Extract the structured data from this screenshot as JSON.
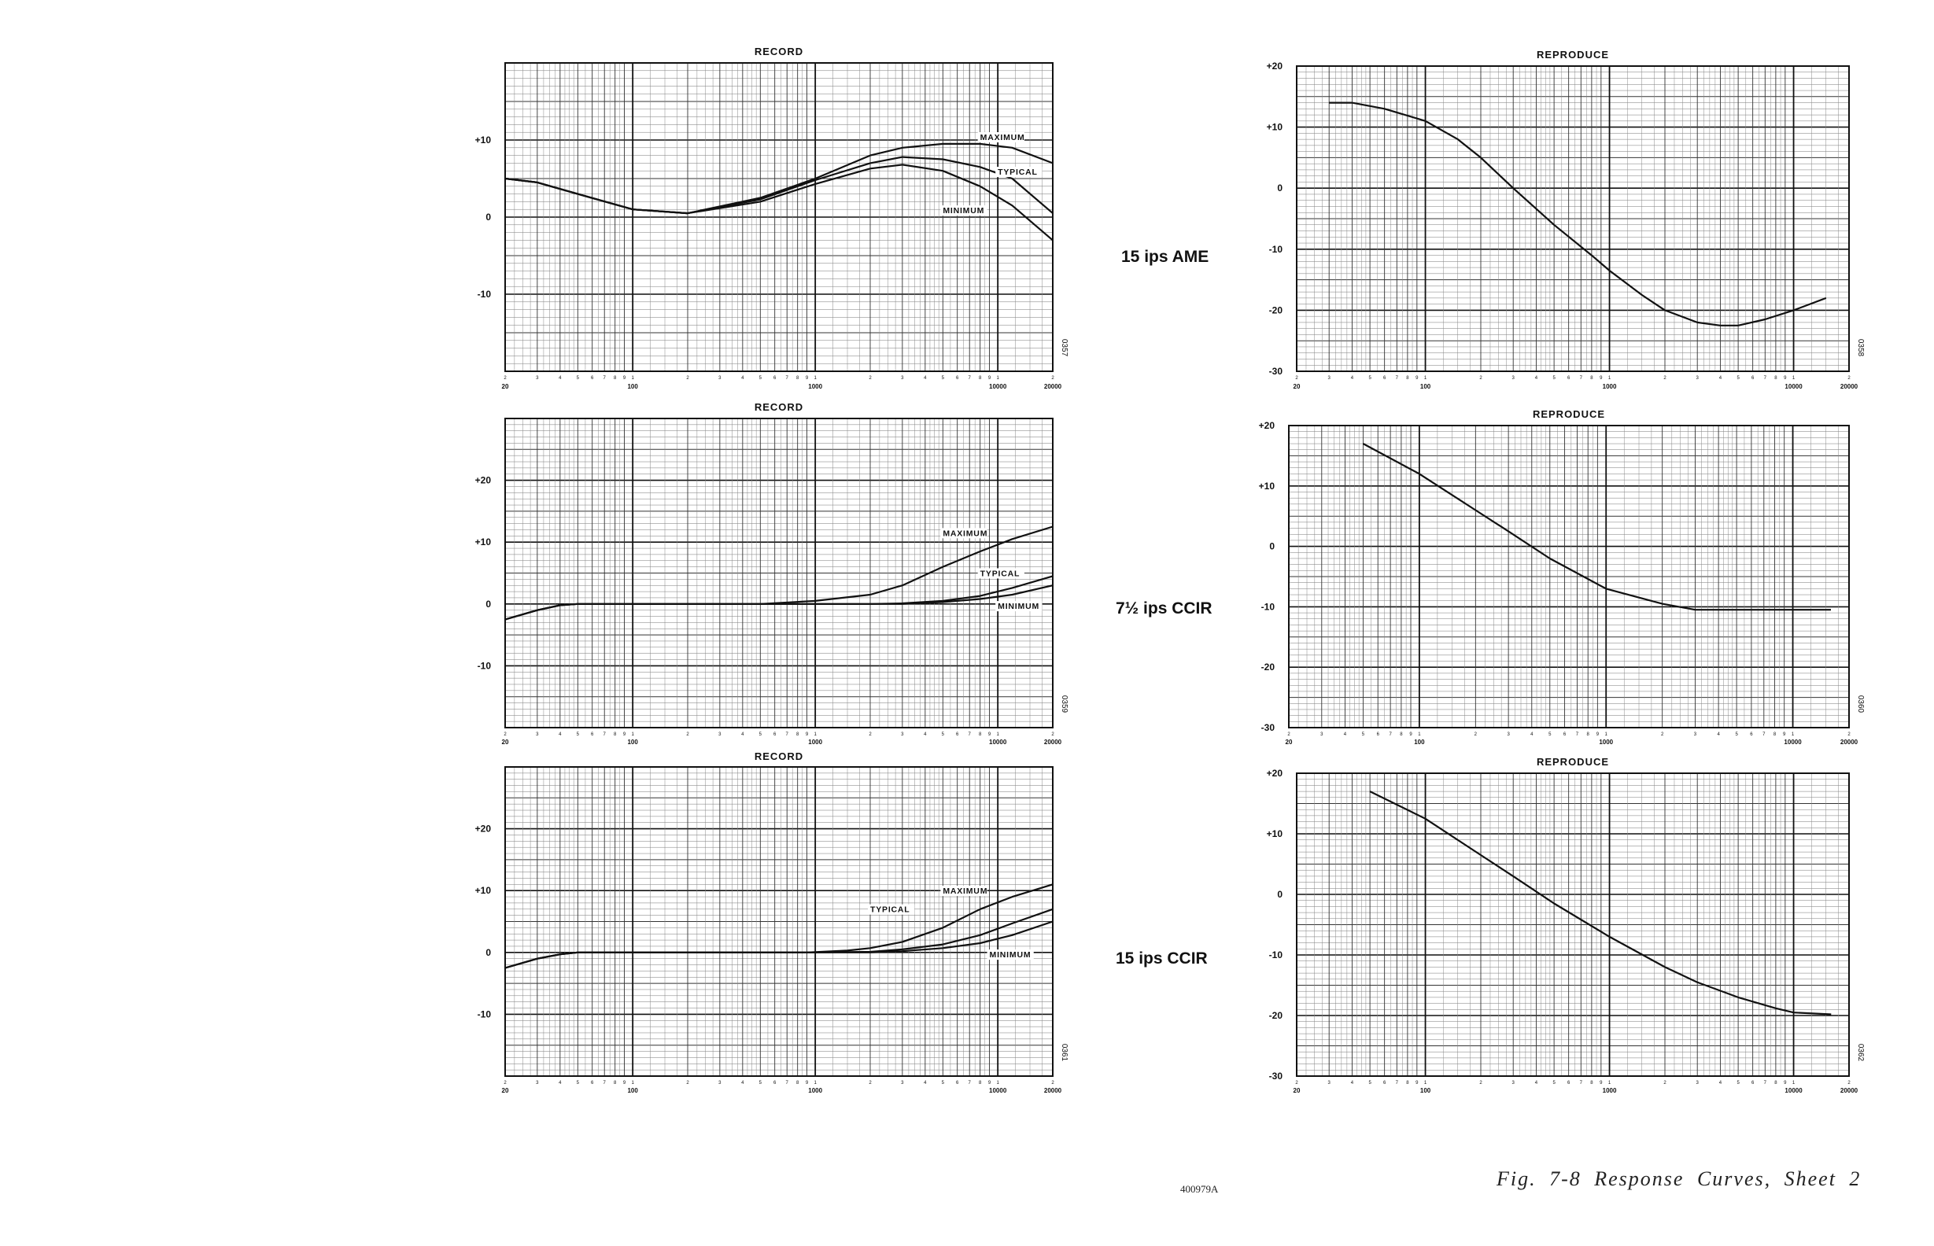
{
  "page": {
    "document_code": "400979A",
    "figure_caption": "Fig. 7-8   Response Curves, Sheet 2"
  },
  "rows": [
    {
      "speed_label": "15 ips AME"
    },
    {
      "speed_label": "7½ ips CCIR"
    },
    {
      "speed_label": "15 ips CCIR"
    }
  ],
  "chart_data": [
    {
      "type": "line",
      "title": "RECORD",
      "code": "0357",
      "xscale": "log",
      "xlim": [
        20,
        20000
      ],
      "ylim": [
        -20,
        20
      ],
      "yticks": [
        {
          "value": 10,
          "label": "+10"
        },
        {
          "value": 0,
          "label": "0"
        },
        {
          "value": -10,
          "label": "-10"
        }
      ],
      "xticks": [
        {
          "value": 20,
          "label": "20"
        },
        {
          "value": 100,
          "label": "100"
        },
        {
          "value": 1000,
          "label": "1000"
        },
        {
          "value": 10000,
          "label": "10000"
        },
        {
          "value": 20000,
          "label": "20000"
        }
      ],
      "series": [
        {
          "name": "MAXIMUM",
          "x": [
            20,
            30,
            50,
            100,
            200,
            500,
            1000,
            2000,
            3000,
            5000,
            8000,
            12000,
            20000
          ],
          "y": [
            5,
            4.5,
            3,
            1,
            0.5,
            2.5,
            5,
            8,
            9,
            9.5,
            9.5,
            9,
            7
          ]
        },
        {
          "name": "TYPICAL",
          "x": [
            20,
            30,
            50,
            100,
            200,
            500,
            1000,
            2000,
            3000,
            5000,
            8000,
            12000,
            20000
          ],
          "y": [
            5,
            4.5,
            3,
            1,
            0.5,
            2.3,
            4.8,
            7,
            7.8,
            7.5,
            6.5,
            5,
            0.5
          ]
        },
        {
          "name": "MINIMUM",
          "x": [
            20,
            30,
            50,
            100,
            200,
            500,
            1000,
            2000,
            3000,
            5000,
            8000,
            12000,
            20000
          ],
          "y": [
            5,
            4.5,
            3,
            1,
            0.5,
            2,
            4.3,
            6.3,
            6.8,
            6,
            4,
            1.5,
            -3
          ]
        }
      ],
      "curve_labels": [
        {
          "text": "MAXIMUM",
          "x": 8000,
          "y": 10
        },
        {
          "text": "TYPICAL",
          "x": 10000,
          "y": 5.5
        },
        {
          "text": "MINIMUM",
          "x": 5000,
          "y": 0.5
        }
      ]
    },
    {
      "type": "line",
      "title": "REPRODUCE",
      "code": "0358",
      "xscale": "log",
      "xlim": [
        20,
        20000
      ],
      "ylim": [
        -30,
        20
      ],
      "yticks": [
        {
          "value": 20,
          "label": "+20"
        },
        {
          "value": 10,
          "label": "+10"
        },
        {
          "value": 0,
          "label": "0"
        },
        {
          "value": -10,
          "label": "-10"
        },
        {
          "value": -20,
          "label": "-20"
        },
        {
          "value": -30,
          "label": "-30"
        }
      ],
      "xticks": [
        {
          "value": 20,
          "label": "20"
        },
        {
          "value": 100,
          "label": "100"
        },
        {
          "value": 1000,
          "label": "1000"
        },
        {
          "value": 10000,
          "label": "10000"
        },
        {
          "value": 20000,
          "label": "20000"
        }
      ],
      "series": [
        {
          "x": [
            30,
            40,
            60,
            100,
            150,
            200,
            300,
            500,
            800,
            1000,
            1500,
            2000,
            3000,
            4000,
            5000,
            7000,
            10000,
            15000
          ],
          "y": [
            14,
            14,
            13,
            11,
            8,
            5,
            0,
            -6,
            -11,
            -13.5,
            -17.5,
            -20,
            -22,
            -22.5,
            -22.5,
            -21.5,
            -20,
            -18
          ]
        }
      ]
    },
    {
      "type": "line",
      "title": "RECORD",
      "code": "0359",
      "xscale": "log",
      "xlim": [
        20,
        20000
      ],
      "ylim": [
        -20,
        30
      ],
      "yticks": [
        {
          "value": 20,
          "label": "+20"
        },
        {
          "value": 10,
          "label": "+10"
        },
        {
          "value": 0,
          "label": "0"
        },
        {
          "value": -10,
          "label": "-10"
        }
      ],
      "xticks": [
        {
          "value": 20,
          "label": "20"
        },
        {
          "value": 100,
          "label": "100"
        },
        {
          "value": 1000,
          "label": "1000"
        },
        {
          "value": 10000,
          "label": "10000"
        },
        {
          "value": 20000,
          "label": "20000"
        }
      ],
      "series": [
        {
          "name": "MAXIMUM",
          "x": [
            20,
            30,
            40,
            50,
            100,
            500,
            1000,
            2000,
            3000,
            5000,
            8000,
            12000,
            20000
          ],
          "y": [
            -2.5,
            -1,
            -0.2,
            0,
            0,
            0,
            0.5,
            1.5,
            3,
            6,
            8.5,
            10.5,
            12.5
          ]
        },
        {
          "name": "TYPICAL",
          "x": [
            20,
            30,
            40,
            50,
            100,
            500,
            1000,
            2000,
            3000,
            5000,
            8000,
            12000,
            20000
          ],
          "y": [
            -2.5,
            -1,
            -0.2,
            0,
            0,
            0,
            0,
            0,
            0.1,
            0.5,
            1.3,
            2.6,
            4.5
          ]
        },
        {
          "name": "MINIMUM",
          "x": [
            20,
            30,
            40,
            50,
            100,
            500,
            1000,
            2000,
            3000,
            5000,
            8000,
            12000,
            20000
          ],
          "y": [
            -2.5,
            -1,
            -0.2,
            0,
            0,
            0,
            0,
            0,
            0,
            0.3,
            0.8,
            1.5,
            3
          ]
        }
      ],
      "curve_labels": [
        {
          "text": "MAXIMUM",
          "x": 5000,
          "y": 11
        },
        {
          "text": "TYPICAL",
          "x": 8000,
          "y": 4.5
        },
        {
          "text": "MINIMUM",
          "x": 10000,
          "y": -0.8
        }
      ]
    },
    {
      "type": "line",
      "title": "REPRODUCE",
      "code": "0360",
      "xscale": "log",
      "xlim": [
        20,
        20000
      ],
      "ylim": [
        -30,
        20
      ],
      "yticks": [
        {
          "value": 20,
          "label": "+20"
        },
        {
          "value": 10,
          "label": "+10"
        },
        {
          "value": 0,
          "label": "0"
        },
        {
          "value": -10,
          "label": "-10"
        },
        {
          "value": -20,
          "label": "-20"
        },
        {
          "value": -30,
          "label": "-30"
        }
      ],
      "xticks": [
        {
          "value": 20,
          "label": "20"
        },
        {
          "value": 100,
          "label": "100"
        },
        {
          "value": 1000,
          "label": "1000"
        },
        {
          "value": 10000,
          "label": "10000"
        },
        {
          "value": 20000,
          "label": "20000"
        }
      ],
      "series": [
        {
          "x": [
            50,
            100,
            200,
            300,
            500,
            1000,
            2000,
            3000,
            5000,
            8000,
            10000,
            16000
          ],
          "y": [
            17,
            12,
            6,
            2.5,
            -2,
            -7,
            -9.5,
            -10.5,
            -10.5,
            -10.5,
            -10.5,
            -10.5
          ]
        }
      ]
    },
    {
      "type": "line",
      "title": "RECORD",
      "code": "0361",
      "xscale": "log",
      "xlim": [
        20,
        20000
      ],
      "ylim": [
        -20,
        30
      ],
      "yticks": [
        {
          "value": 20,
          "label": "+20"
        },
        {
          "value": 10,
          "label": "+10"
        },
        {
          "value": 0,
          "label": "0"
        },
        {
          "value": -10,
          "label": "-10"
        }
      ],
      "xticks": [
        {
          "value": 20,
          "label": "20"
        },
        {
          "value": 100,
          "label": "100"
        },
        {
          "value": 1000,
          "label": "1000"
        },
        {
          "value": 10000,
          "label": "10000"
        },
        {
          "value": 20000,
          "label": "20000"
        }
      ],
      "series": [
        {
          "name": "MAXIMUM",
          "x": [
            20,
            30,
            40,
            50,
            60,
            100,
            900,
            1500,
            2000,
            3000,
            5000,
            8000,
            12000,
            20000
          ],
          "y": [
            -2.5,
            -1,
            -0.3,
            0,
            0,
            0,
            0,
            0.3,
            0.7,
            1.7,
            4,
            7,
            9,
            11
          ]
        },
        {
          "name": "TYPICAL",
          "x": [
            20,
            30,
            40,
            50,
            60,
            100,
            900,
            2000,
            3000,
            5000,
            8000,
            12000,
            20000
          ],
          "y": [
            -2.5,
            -1,
            -0.3,
            0,
            0,
            0,
            0,
            0.1,
            0.5,
            1.3,
            2.8,
            4.7,
            7
          ]
        },
        {
          "name": "MINIMUM",
          "x": [
            20,
            30,
            40,
            50,
            60,
            100,
            900,
            2000,
            3000,
            5000,
            8000,
            12000,
            20000
          ],
          "y": [
            -2.5,
            -1,
            -0.3,
            0,
            0,
            0,
            0,
            0,
            0.2,
            0.7,
            1.5,
            2.8,
            5
          ]
        }
      ],
      "curve_labels": [
        {
          "text": "MAXIMUM",
          "x": 5000,
          "y": 9.5
        },
        {
          "text": "TYPICAL",
          "x": 2000,
          "y": 6.5
        },
        {
          "text": "MINIMUM",
          "x": 9000,
          "y": -0.8
        }
      ]
    },
    {
      "type": "line",
      "title": "REPRODUCE",
      "code": "0362",
      "xscale": "log",
      "xlim": [
        20,
        20000
      ],
      "ylim": [
        -30,
        20
      ],
      "yticks": [
        {
          "value": 20,
          "label": "+20"
        },
        {
          "value": 10,
          "label": "+10"
        },
        {
          "value": 0,
          "label": "0"
        },
        {
          "value": -10,
          "label": "-10"
        },
        {
          "value": -20,
          "label": "-20"
        },
        {
          "value": -30,
          "label": "-30"
        }
      ],
      "xticks": [
        {
          "value": 20,
          "label": "20"
        },
        {
          "value": 100,
          "label": "100"
        },
        {
          "value": 1000,
          "label": "1000"
        },
        {
          "value": 10000,
          "label": "10000"
        },
        {
          "value": 20000,
          "label": "20000"
        }
      ],
      "series": [
        {
          "x": [
            50,
            100,
            200,
            300,
            500,
            1000,
            2000,
            3000,
            5000,
            8000,
            10000,
            16000
          ],
          "y": [
            17,
            12.5,
            6.5,
            3,
            -1.5,
            -7,
            -12,
            -14.5,
            -17,
            -18.8,
            -19.5,
            -19.8
          ]
        }
      ]
    }
  ]
}
